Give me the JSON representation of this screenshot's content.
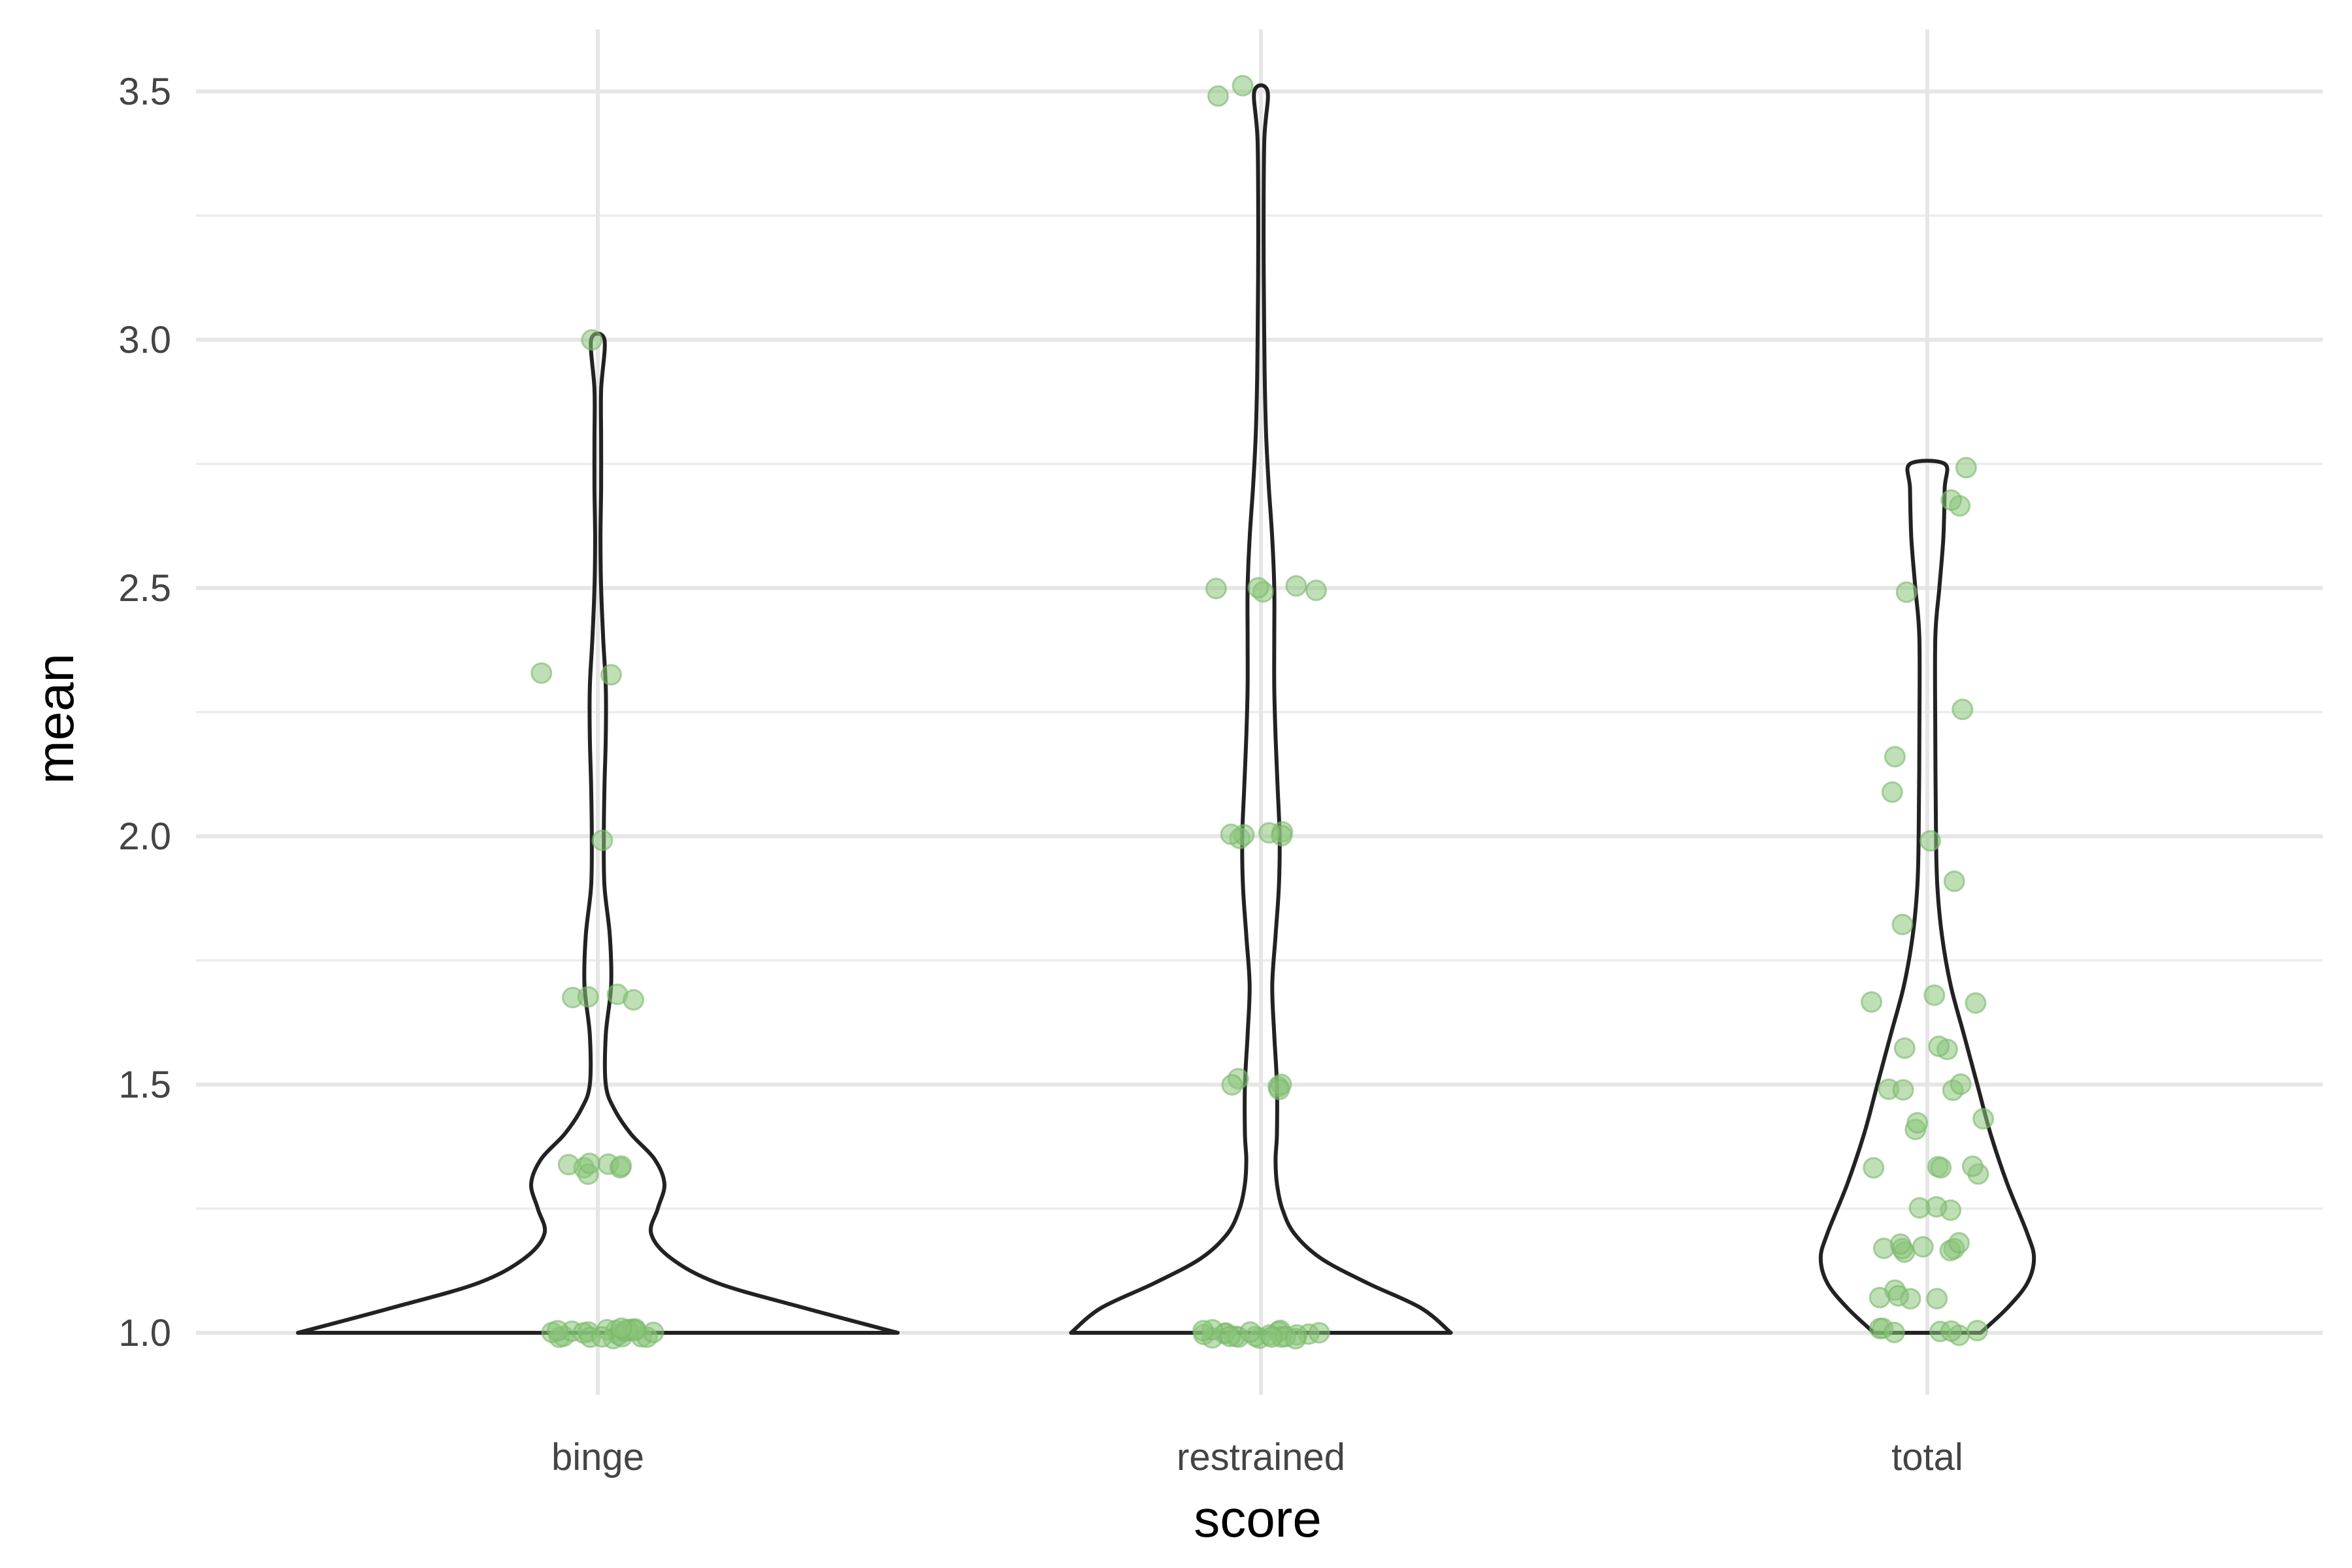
{
  "chart_data": {
    "type": "violin",
    "xlabel": "score",
    "ylabel": "mean",
    "categories": [
      "binge",
      "restrained",
      "total"
    ],
    "ylim": [
      0.92,
      3.6
    ],
    "yticks": [
      1.0,
      1.5,
      2.0,
      2.5,
      3.0,
      3.5
    ],
    "ytick_labels": [
      "1.0",
      "1.5",
      "2.0",
      "2.5",
      "3.0",
      "3.5"
    ],
    "grid": true,
    "point_color": "#8bc47a",
    "outline_color": "#222222",
    "violins": [
      {
        "category": "binge",
        "outline": [
          [
            1.0,
            0.45
          ],
          [
            1.05,
            0.31
          ],
          [
            1.1,
            0.18
          ],
          [
            1.15,
            0.11
          ],
          [
            1.2,
            0.08
          ],
          [
            1.25,
            0.09
          ],
          [
            1.3,
            0.1
          ],
          [
            1.35,
            0.085
          ],
          [
            1.4,
            0.05
          ],
          [
            1.45,
            0.025
          ],
          [
            1.5,
            0.012
          ],
          [
            1.6,
            0.012
          ],
          [
            1.7,
            0.02
          ],
          [
            1.8,
            0.018
          ],
          [
            1.9,
            0.01
          ],
          [
            2.0,
            0.009
          ],
          [
            2.1,
            0.01
          ],
          [
            2.2,
            0.012
          ],
          [
            2.3,
            0.012
          ],
          [
            2.4,
            0.008
          ],
          [
            2.5,
            0.005
          ],
          [
            2.6,
            0.004
          ],
          [
            2.7,
            0.005
          ],
          [
            2.8,
            0.005
          ],
          [
            2.9,
            0.005
          ],
          [
            3.0,
            0.01
          ]
        ],
        "points": [
          1.0,
          1.0,
          1.0,
          1.0,
          1.0,
          1.0,
          1.0,
          1.0,
          1.0,
          1.0,
          1.0,
          1.0,
          1.0,
          1.0,
          1.0,
          1.0,
          1.0,
          1.0,
          1.0,
          1.0,
          1.0,
          1.0,
          1.0,
          1.0,
          1.33,
          1.33,
          1.33,
          1.33,
          1.33,
          1.33,
          1.33,
          1.67,
          1.67,
          1.67,
          1.67,
          2.0,
          2.33,
          2.33,
          3.0
        ]
      },
      {
        "category": "restrained",
        "outline": [
          [
            1.0,
            0.285
          ],
          [
            1.05,
            0.24
          ],
          [
            1.1,
            0.16
          ],
          [
            1.15,
            0.09
          ],
          [
            1.2,
            0.05
          ],
          [
            1.25,
            0.032
          ],
          [
            1.3,
            0.024
          ],
          [
            1.35,
            0.022
          ],
          [
            1.4,
            0.024
          ],
          [
            1.5,
            0.024
          ],
          [
            1.6,
            0.02
          ],
          [
            1.7,
            0.017
          ],
          [
            1.8,
            0.022
          ],
          [
            1.9,
            0.027
          ],
          [
            2.0,
            0.028
          ],
          [
            2.1,
            0.025
          ],
          [
            2.2,
            0.022
          ],
          [
            2.3,
            0.02
          ],
          [
            2.4,
            0.02
          ],
          [
            2.5,
            0.02
          ],
          [
            2.6,
            0.017
          ],
          [
            2.7,
            0.012
          ],
          [
            2.8,
            0.008
          ],
          [
            2.9,
            0.006
          ],
          [
            3.0,
            0.005
          ],
          [
            3.2,
            0.004
          ],
          [
            3.4,
            0.005
          ],
          [
            3.5,
            0.01
          ]
        ],
        "points": [
          1.0,
          1.0,
          1.0,
          1.0,
          1.0,
          1.0,
          1.0,
          1.0,
          1.0,
          1.0,
          1.0,
          1.0,
          1.0,
          1.0,
          1.0,
          1.0,
          1.0,
          1.0,
          1.0,
          1.0,
          1.0,
          1.0,
          1.5,
          1.5,
          1.5,
          1.5,
          1.5,
          2.0,
          2.0,
          2.0,
          2.0,
          2.0,
          2.0,
          2.5,
          2.5,
          2.5,
          2.5,
          2.5,
          3.5,
          3.5
        ]
      },
      {
        "category": "total",
        "outline": [
          [
            1.0,
            0.08
          ],
          [
            1.05,
            0.12
          ],
          [
            1.1,
            0.15
          ],
          [
            1.15,
            0.16
          ],
          [
            1.2,
            0.15
          ],
          [
            1.3,
            0.12
          ],
          [
            1.4,
            0.095
          ],
          [
            1.5,
            0.075
          ],
          [
            1.6,
            0.055
          ],
          [
            1.7,
            0.035
          ],
          [
            1.8,
            0.022
          ],
          [
            1.9,
            0.015
          ],
          [
            2.0,
            0.013
          ],
          [
            2.2,
            0.012
          ],
          [
            2.4,
            0.012
          ],
          [
            2.5,
            0.018
          ],
          [
            2.6,
            0.024
          ],
          [
            2.7,
            0.026
          ],
          [
            2.75,
            0.026
          ]
        ],
        "points": [
          1.0,
          1.0,
          1.0,
          1.0,
          1.0,
          1.0,
          1.0,
          1.08,
          1.08,
          1.08,
          1.08,
          1.08,
          1.17,
          1.17,
          1.17,
          1.17,
          1.17,
          1.17,
          1.17,
          1.17,
          1.25,
          1.25,
          1.25,
          1.33,
          1.33,
          1.33,
          1.33,
          1.33,
          1.42,
          1.42,
          1.42,
          1.5,
          1.5,
          1.5,
          1.5,
          1.58,
          1.58,
          1.58,
          1.67,
          1.67,
          1.67,
          1.83,
          1.92,
          2.0,
          2.08,
          2.17,
          2.25,
          2.5,
          2.67,
          2.67,
          2.75
        ]
      }
    ]
  }
}
